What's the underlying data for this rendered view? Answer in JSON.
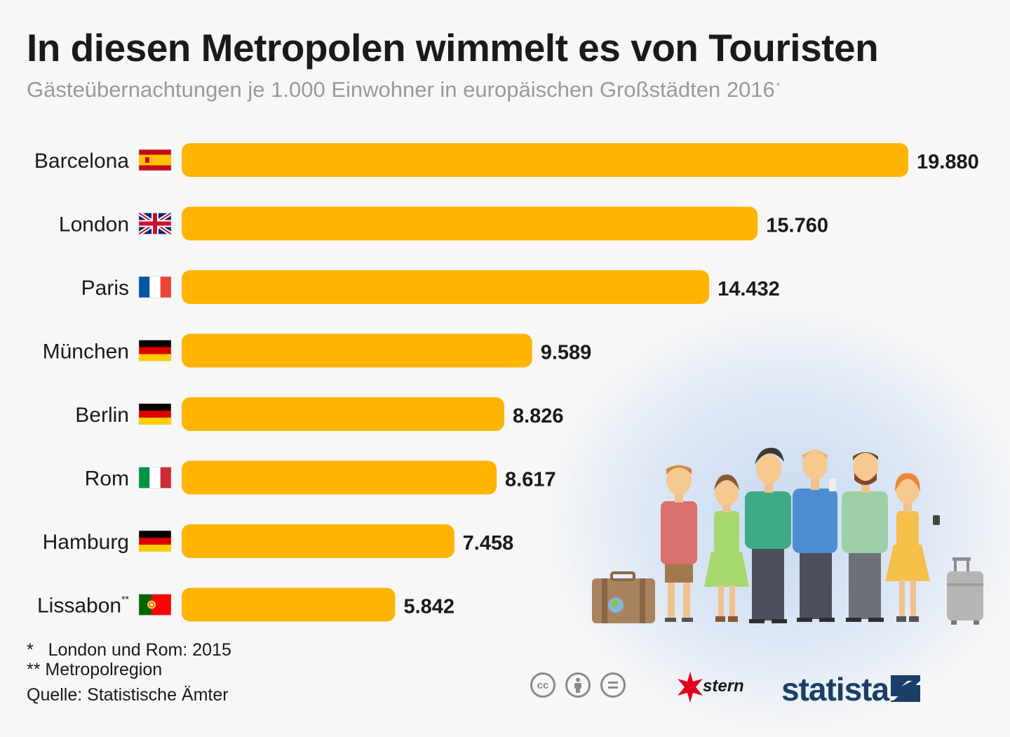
{
  "title": "In diesen Metropolen wimmelt es von Touristen",
  "subtitle": "Gästeübernachtungen je 1.000 Einwohner in europäischen Großstädten 2016",
  "subtitle_mark": "*",
  "bar_color": "#ffb400",
  "chart_data": {
    "type": "bar",
    "orientation": "horizontal",
    "title": "In diesen Metropolen wimmelt es von Touristen",
    "subtitle": "Gästeübernachtungen je 1.000 Einwohner in europäischen Großstädten 2016",
    "categories": [
      "Barcelona",
      "London",
      "Paris",
      "München",
      "Berlin",
      "Rom",
      "Hamburg",
      "Lissabon"
    ],
    "category_marks": [
      "",
      "",
      "",
      "",
      "",
      "",
      "",
      "**"
    ],
    "flags": [
      "spain-flag",
      "uk-flag",
      "france-flag",
      "germany-flag",
      "germany-flag",
      "italy-flag",
      "germany-flag",
      "portugal-flag"
    ],
    "values": [
      19880,
      15760,
      14432,
      9589,
      8826,
      8617,
      7458,
      5842
    ],
    "value_labels": [
      "19.880",
      "15.760",
      "14.432",
      "9.589",
      "8.826",
      "8.617",
      "7.458",
      "5.842"
    ],
    "xlim": [
      0,
      19880
    ],
    "xlabel": "",
    "ylabel": "",
    "grid": false
  },
  "footnotes": {
    "note1_mark": "*",
    "note1": "London und Rom: 2015",
    "note2": "** Metropolregion",
    "source": "Quelle: Statistische Ämter"
  },
  "logos": {
    "cc1": "cc",
    "stern": "stern",
    "statista": "statista"
  }
}
